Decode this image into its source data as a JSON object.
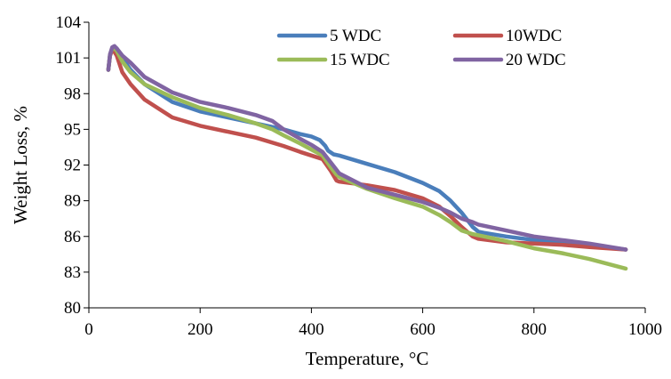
{
  "chart_data": {
    "type": "line",
    "title": "",
    "xlabel": "Temperature, °C",
    "ylabel": "Weight Loss, %",
    "xlim": [
      0,
      1000
    ],
    "ylim": [
      80,
      104
    ],
    "xticks": [
      0,
      200,
      400,
      600,
      800,
      1000
    ],
    "yticks": [
      80,
      83,
      86,
      89,
      92,
      95,
      98,
      101,
      104
    ],
    "grid": false,
    "legend_position": "top-right",
    "series": [
      {
        "name": "5 WDC",
        "color": "#4a7ebb",
        "x": [
          35,
          38,
          42,
          46,
          50,
          60,
          75,
          100,
          150,
          200,
          250,
          300,
          350,
          380,
          400,
          415,
          425,
          430,
          440,
          450,
          500,
          550,
          600,
          630,
          650,
          670,
          690,
          700,
          710,
          750,
          800,
          850,
          900,
          965
        ],
        "y": [
          100.0,
          101.2,
          101.7,
          101.9,
          101.8,
          101.0,
          100.0,
          98.8,
          97.3,
          96.5,
          96.0,
          95.5,
          95.0,
          94.6,
          94.4,
          94.1,
          93.6,
          93.2,
          92.9,
          92.8,
          92.1,
          91.4,
          90.5,
          89.8,
          89.0,
          88.0,
          86.8,
          86.4,
          86.3,
          86.0,
          85.7,
          85.5,
          85.3,
          84.9
        ]
      },
      {
        "name": "10WDC",
        "color": "#c0504d",
        "x": [
          35,
          38,
          42,
          46,
          50,
          60,
          75,
          100,
          150,
          200,
          250,
          300,
          350,
          380,
          400,
          420,
          435,
          445,
          450,
          500,
          550,
          600,
          630,
          650,
          670,
          690,
          700,
          750,
          800,
          850,
          900,
          965
        ],
        "y": [
          100.0,
          101.2,
          101.7,
          101.5,
          101.2,
          99.8,
          98.8,
          97.5,
          96.0,
          95.3,
          94.8,
          94.3,
          93.6,
          93.1,
          92.8,
          92.5,
          91.5,
          90.7,
          90.6,
          90.3,
          89.9,
          89.2,
          88.5,
          87.7,
          86.8,
          86.0,
          85.8,
          85.5,
          85.4,
          85.3,
          85.1,
          84.9
        ]
      },
      {
        "name": "15 WDC",
        "color": "#9bbb59",
        "x": [
          35,
          38,
          42,
          46,
          50,
          60,
          75,
          100,
          150,
          200,
          250,
          300,
          330,
          350,
          380,
          400,
          420,
          435,
          445,
          450,
          500,
          550,
          600,
          630,
          650,
          670,
          690,
          700,
          750,
          800,
          850,
          900,
          965
        ],
        "y": [
          100.0,
          101.3,
          101.8,
          101.8,
          101.6,
          100.7,
          99.8,
          98.8,
          97.7,
          96.8,
          96.2,
          95.5,
          95.0,
          94.5,
          93.8,
          93.3,
          92.8,
          91.8,
          91.2,
          91.0,
          90.0,
          89.2,
          88.5,
          87.8,
          87.2,
          86.5,
          86.2,
          86.1,
          85.6,
          85.0,
          84.6,
          84.1,
          83.3
        ]
      },
      {
        "name": "20 WDC",
        "color": "#8064a2",
        "x": [
          35,
          38,
          42,
          46,
          50,
          60,
          75,
          100,
          150,
          200,
          250,
          300,
          330,
          350,
          380,
          400,
          420,
          435,
          445,
          450,
          500,
          550,
          600,
          630,
          650,
          670,
          690,
          700,
          750,
          800,
          850,
          900,
          965
        ],
        "y": [
          100.0,
          101.3,
          101.9,
          102.0,
          101.8,
          101.2,
          100.6,
          99.4,
          98.1,
          97.3,
          96.8,
          96.2,
          95.7,
          95.0,
          94.2,
          93.7,
          93.1,
          92.2,
          91.6,
          91.3,
          90.1,
          89.5,
          88.9,
          88.4,
          88.0,
          87.5,
          87.2,
          87.0,
          86.5,
          86.0,
          85.7,
          85.4,
          84.9
        ]
      }
    ]
  }
}
